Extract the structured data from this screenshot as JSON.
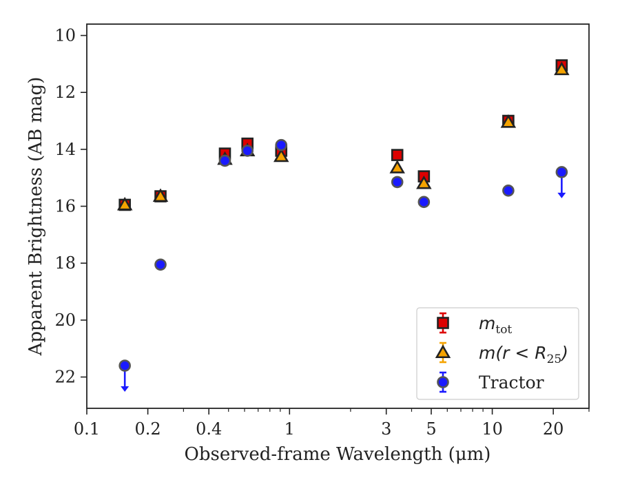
{
  "chart_data": {
    "type": "scatter",
    "title": "",
    "xlabel": "Observed-frame Wavelength (μm)",
    "ylabel": "Apparent Brightness (AB mag)",
    "xscale": "log",
    "yaxis_inverted": true,
    "xlim": [
      0.1,
      30
    ],
    "ylim": [
      23.1,
      9.6
    ],
    "x_ticks": [
      {
        "value": 0.1,
        "label": "0.1"
      },
      {
        "value": 0.2,
        "label": "0.2"
      },
      {
        "value": 0.4,
        "label": "0.4"
      },
      {
        "value": 1,
        "label": "1"
      },
      {
        "value": 3,
        "label": "3"
      },
      {
        "value": 5,
        "label": "5"
      },
      {
        "value": 10,
        "label": "10"
      },
      {
        "value": 20,
        "label": "20"
      }
    ],
    "y_ticks": [
      {
        "value": 10,
        "label": "10"
      },
      {
        "value": 12,
        "label": "12"
      },
      {
        "value": 14,
        "label": "14"
      },
      {
        "value": 16,
        "label": "16"
      },
      {
        "value": 18,
        "label": "18"
      },
      {
        "value": 20,
        "label": "20"
      },
      {
        "value": 22,
        "label": "22"
      }
    ],
    "grid": false,
    "legend_position": "lower-right",
    "series": [
      {
        "name": "m_tot",
        "marker": "square",
        "color": "#dd0000",
        "edge_color": "#222222",
        "x": [
          0.154,
          0.231,
          0.48,
          0.62,
          0.91,
          3.4,
          4.6,
          12.0,
          22.0
        ],
        "y": [
          15.95,
          15.65,
          14.15,
          13.8,
          14.05,
          14.2,
          14.95,
          13.0,
          11.05
        ],
        "upper_limit": [
          false,
          false,
          false,
          false,
          false,
          false,
          false,
          false,
          false
        ]
      },
      {
        "name": "m(r < R25)",
        "marker": "triangle",
        "color": "#f5a300",
        "edge_color": "#222222",
        "x": [
          0.154,
          0.231,
          0.48,
          0.62,
          0.91,
          3.4,
          4.6,
          12.0,
          22.0
        ],
        "y": [
          15.95,
          15.65,
          14.35,
          14.05,
          14.25,
          14.65,
          15.2,
          13.05,
          11.2
        ],
        "upper_limit": [
          false,
          false,
          false,
          false,
          false,
          false,
          false,
          false,
          false
        ]
      },
      {
        "name": "Tractor",
        "marker": "circle",
        "color": "#1a1aff",
        "edge_color": "#555555",
        "x": [
          0.154,
          0.231,
          0.48,
          0.62,
          0.91,
          3.4,
          4.6,
          12.0,
          22.0
        ],
        "y": [
          21.6,
          18.05,
          14.4,
          14.05,
          13.85,
          15.15,
          15.85,
          15.45,
          14.8
        ],
        "upper_limit": [
          true,
          false,
          false,
          false,
          false,
          false,
          false,
          false,
          true
        ]
      }
    ],
    "legend": [
      {
        "series": "m_tot",
        "base": "m",
        "sub": "tot",
        "text": ""
      },
      {
        "series": "m(r < R25)",
        "base": "m(r < R",
        "sub": "25",
        "text": ")"
      },
      {
        "series": "Tractor",
        "base": "",
        "sub": "",
        "text": "Tractor"
      }
    ]
  }
}
